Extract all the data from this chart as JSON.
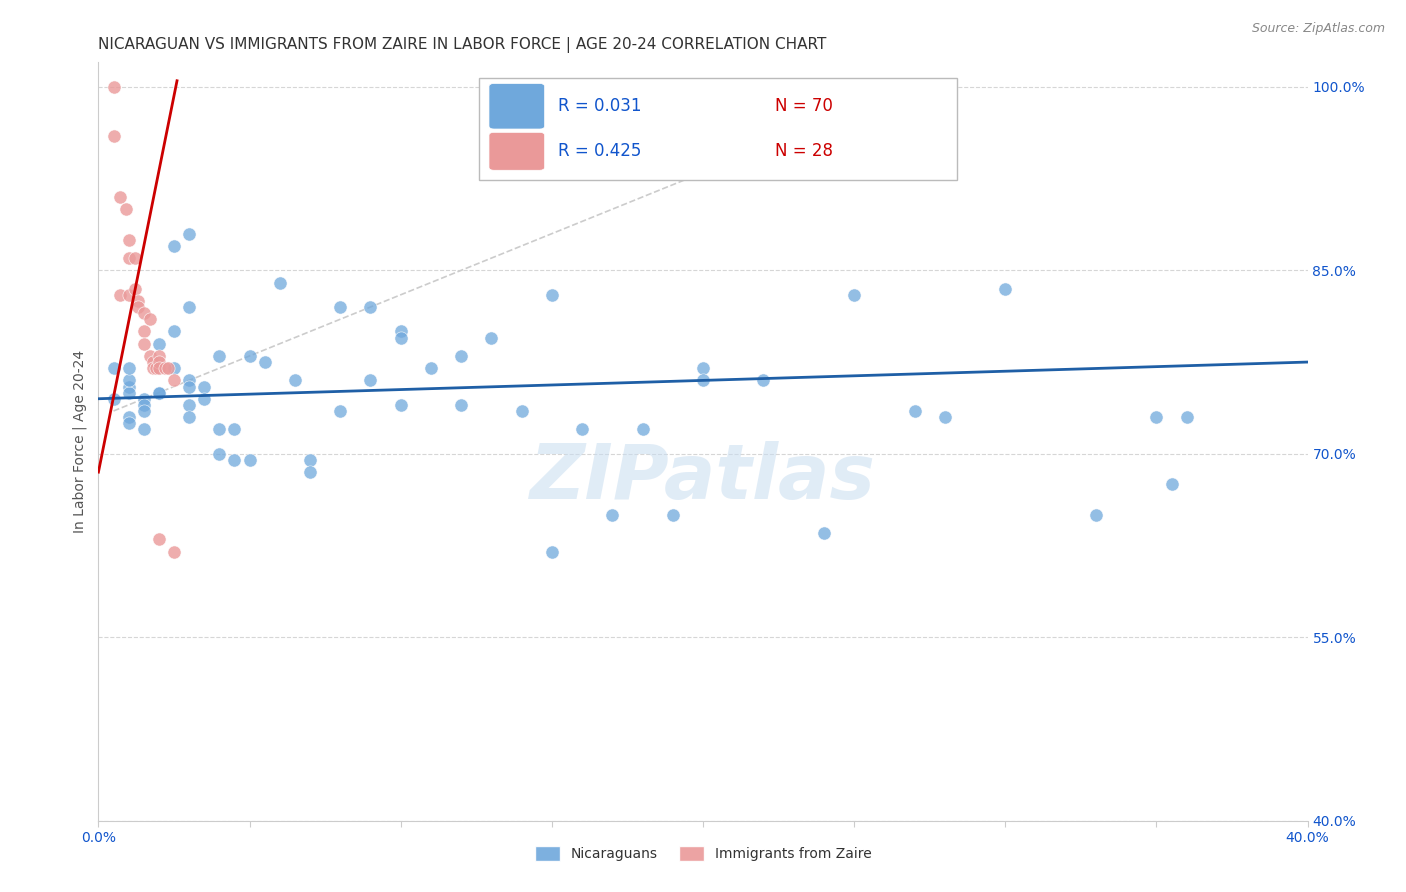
{
  "title": "NICARAGUAN VS IMMIGRANTS FROM ZAIRE IN LABOR FORCE | AGE 20-24 CORRELATION CHART",
  "source": "Source: ZipAtlas.com",
  "ylabel": "In Labor Force | Age 20-24",
  "x_min": 0.0,
  "x_max": 0.4,
  "y_min": 0.4,
  "y_max": 1.02,
  "x_ticks": [
    0.0,
    0.05,
    0.1,
    0.15,
    0.2,
    0.25,
    0.3,
    0.35,
    0.4
  ],
  "y_ticks": [
    0.4,
    0.55,
    0.7,
    0.85,
    1.0
  ],
  "y_tick_labels": [
    "40.0%",
    "55.0%",
    "70.0%",
    "85.0%",
    "100.0%"
  ],
  "blue_color": "#6fa8dc",
  "pink_color": "#ea9999",
  "blue_line_color": "#1f5fa6",
  "pink_line_color": "#cc0000",
  "legend_r_color": "#1155cc",
  "legend_n_color": "#cc0000",
  "watermark": "ZIPatlas",
  "blue_scatter_x": [
    0.005,
    0.005,
    0.01,
    0.01,
    0.01,
    0.01,
    0.01,
    0.01,
    0.015,
    0.015,
    0.015,
    0.015,
    0.02,
    0.02,
    0.02,
    0.025,
    0.025,
    0.025,
    0.03,
    0.03,
    0.03,
    0.03,
    0.03,
    0.03,
    0.035,
    0.035,
    0.04,
    0.04,
    0.04,
    0.045,
    0.045,
    0.05,
    0.05,
    0.055,
    0.06,
    0.065,
    0.07,
    0.07,
    0.08,
    0.08,
    0.09,
    0.09,
    0.1,
    0.1,
    0.1,
    0.11,
    0.12,
    0.12,
    0.13,
    0.14,
    0.15,
    0.15,
    0.16,
    0.17,
    0.18,
    0.19,
    0.2,
    0.2,
    0.22,
    0.24,
    0.25,
    0.27,
    0.28,
    0.3,
    0.33,
    0.35,
    0.36,
    0.355
  ],
  "blue_scatter_y": [
    0.77,
    0.745,
    0.755,
    0.75,
    0.76,
    0.73,
    0.77,
    0.725,
    0.745,
    0.74,
    0.735,
    0.72,
    0.79,
    0.75,
    0.75,
    0.87,
    0.8,
    0.77,
    0.88,
    0.82,
    0.76,
    0.755,
    0.74,
    0.73,
    0.755,
    0.745,
    0.78,
    0.72,
    0.7,
    0.72,
    0.695,
    0.78,
    0.695,
    0.775,
    0.84,
    0.76,
    0.695,
    0.685,
    0.82,
    0.735,
    0.82,
    0.76,
    0.8,
    0.795,
    0.74,
    0.77,
    0.78,
    0.74,
    0.795,
    0.735,
    0.83,
    0.62,
    0.72,
    0.65,
    0.72,
    0.65,
    0.77,
    0.76,
    0.76,
    0.635,
    0.83,
    0.735,
    0.73,
    0.835,
    0.65,
    0.73,
    0.73,
    0.675
  ],
  "pink_scatter_x": [
    0.005,
    0.005,
    0.007,
    0.007,
    0.009,
    0.01,
    0.01,
    0.01,
    0.012,
    0.012,
    0.013,
    0.013,
    0.015,
    0.015,
    0.015,
    0.017,
    0.017,
    0.018,
    0.018,
    0.019,
    0.02,
    0.02,
    0.02,
    0.02,
    0.022,
    0.023,
    0.025,
    0.025
  ],
  "pink_scatter_y": [
    1.0,
    0.96,
    0.91,
    0.83,
    0.9,
    0.875,
    0.86,
    0.83,
    0.86,
    0.835,
    0.825,
    0.82,
    0.815,
    0.8,
    0.79,
    0.81,
    0.78,
    0.775,
    0.77,
    0.77,
    0.78,
    0.775,
    0.77,
    0.63,
    0.77,
    0.77,
    0.76,
    0.62
  ],
  "blue_line_x": [
    0.0,
    0.4
  ],
  "blue_line_y": [
    0.745,
    0.775
  ],
  "pink_line_x": [
    0.0,
    0.026
  ],
  "pink_line_y": [
    0.685,
    1.005
  ],
  "identity_line_x": [
    0.005,
    0.265
  ],
  "identity_line_y": [
    0.735,
    0.995
  ],
  "grid_color": "#cccccc",
  "bg_color": "#ffffff",
  "title_fontsize": 11,
  "axis_label_fontsize": 10,
  "tick_fontsize": 10
}
